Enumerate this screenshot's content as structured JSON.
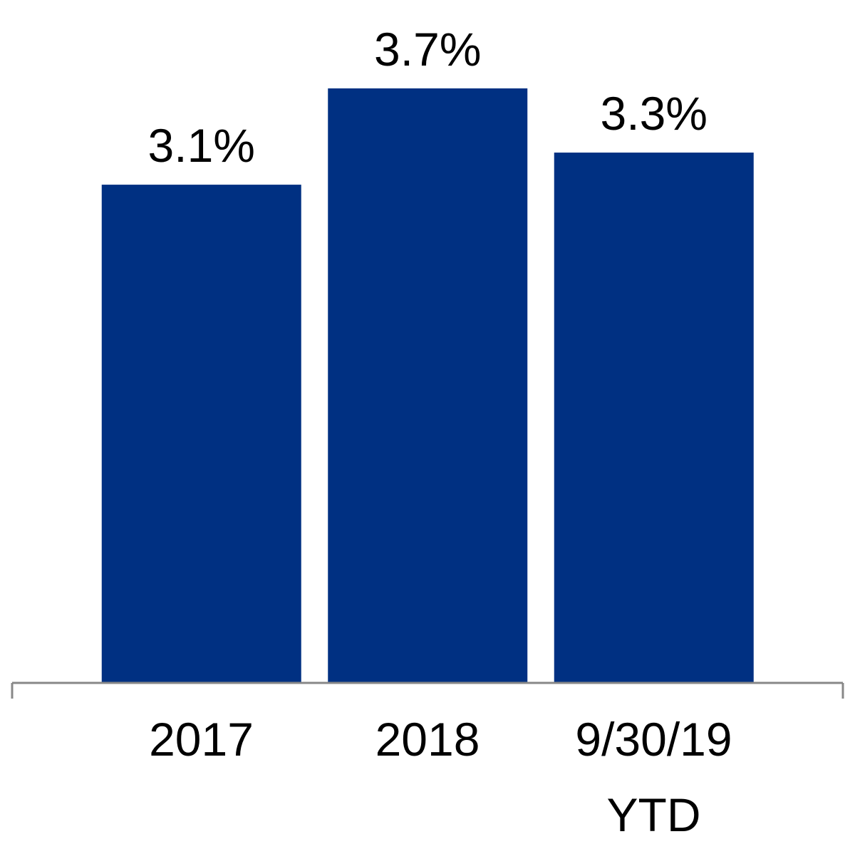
{
  "chart_data": {
    "type": "bar",
    "categories": [
      "2017",
      "2018",
      "9/30/19 YTD"
    ],
    "values": [
      3.1,
      3.7,
      3.3
    ],
    "value_labels": [
      "3.1%",
      "3.7%",
      "3.3%"
    ],
    "color": "#003082"
  }
}
